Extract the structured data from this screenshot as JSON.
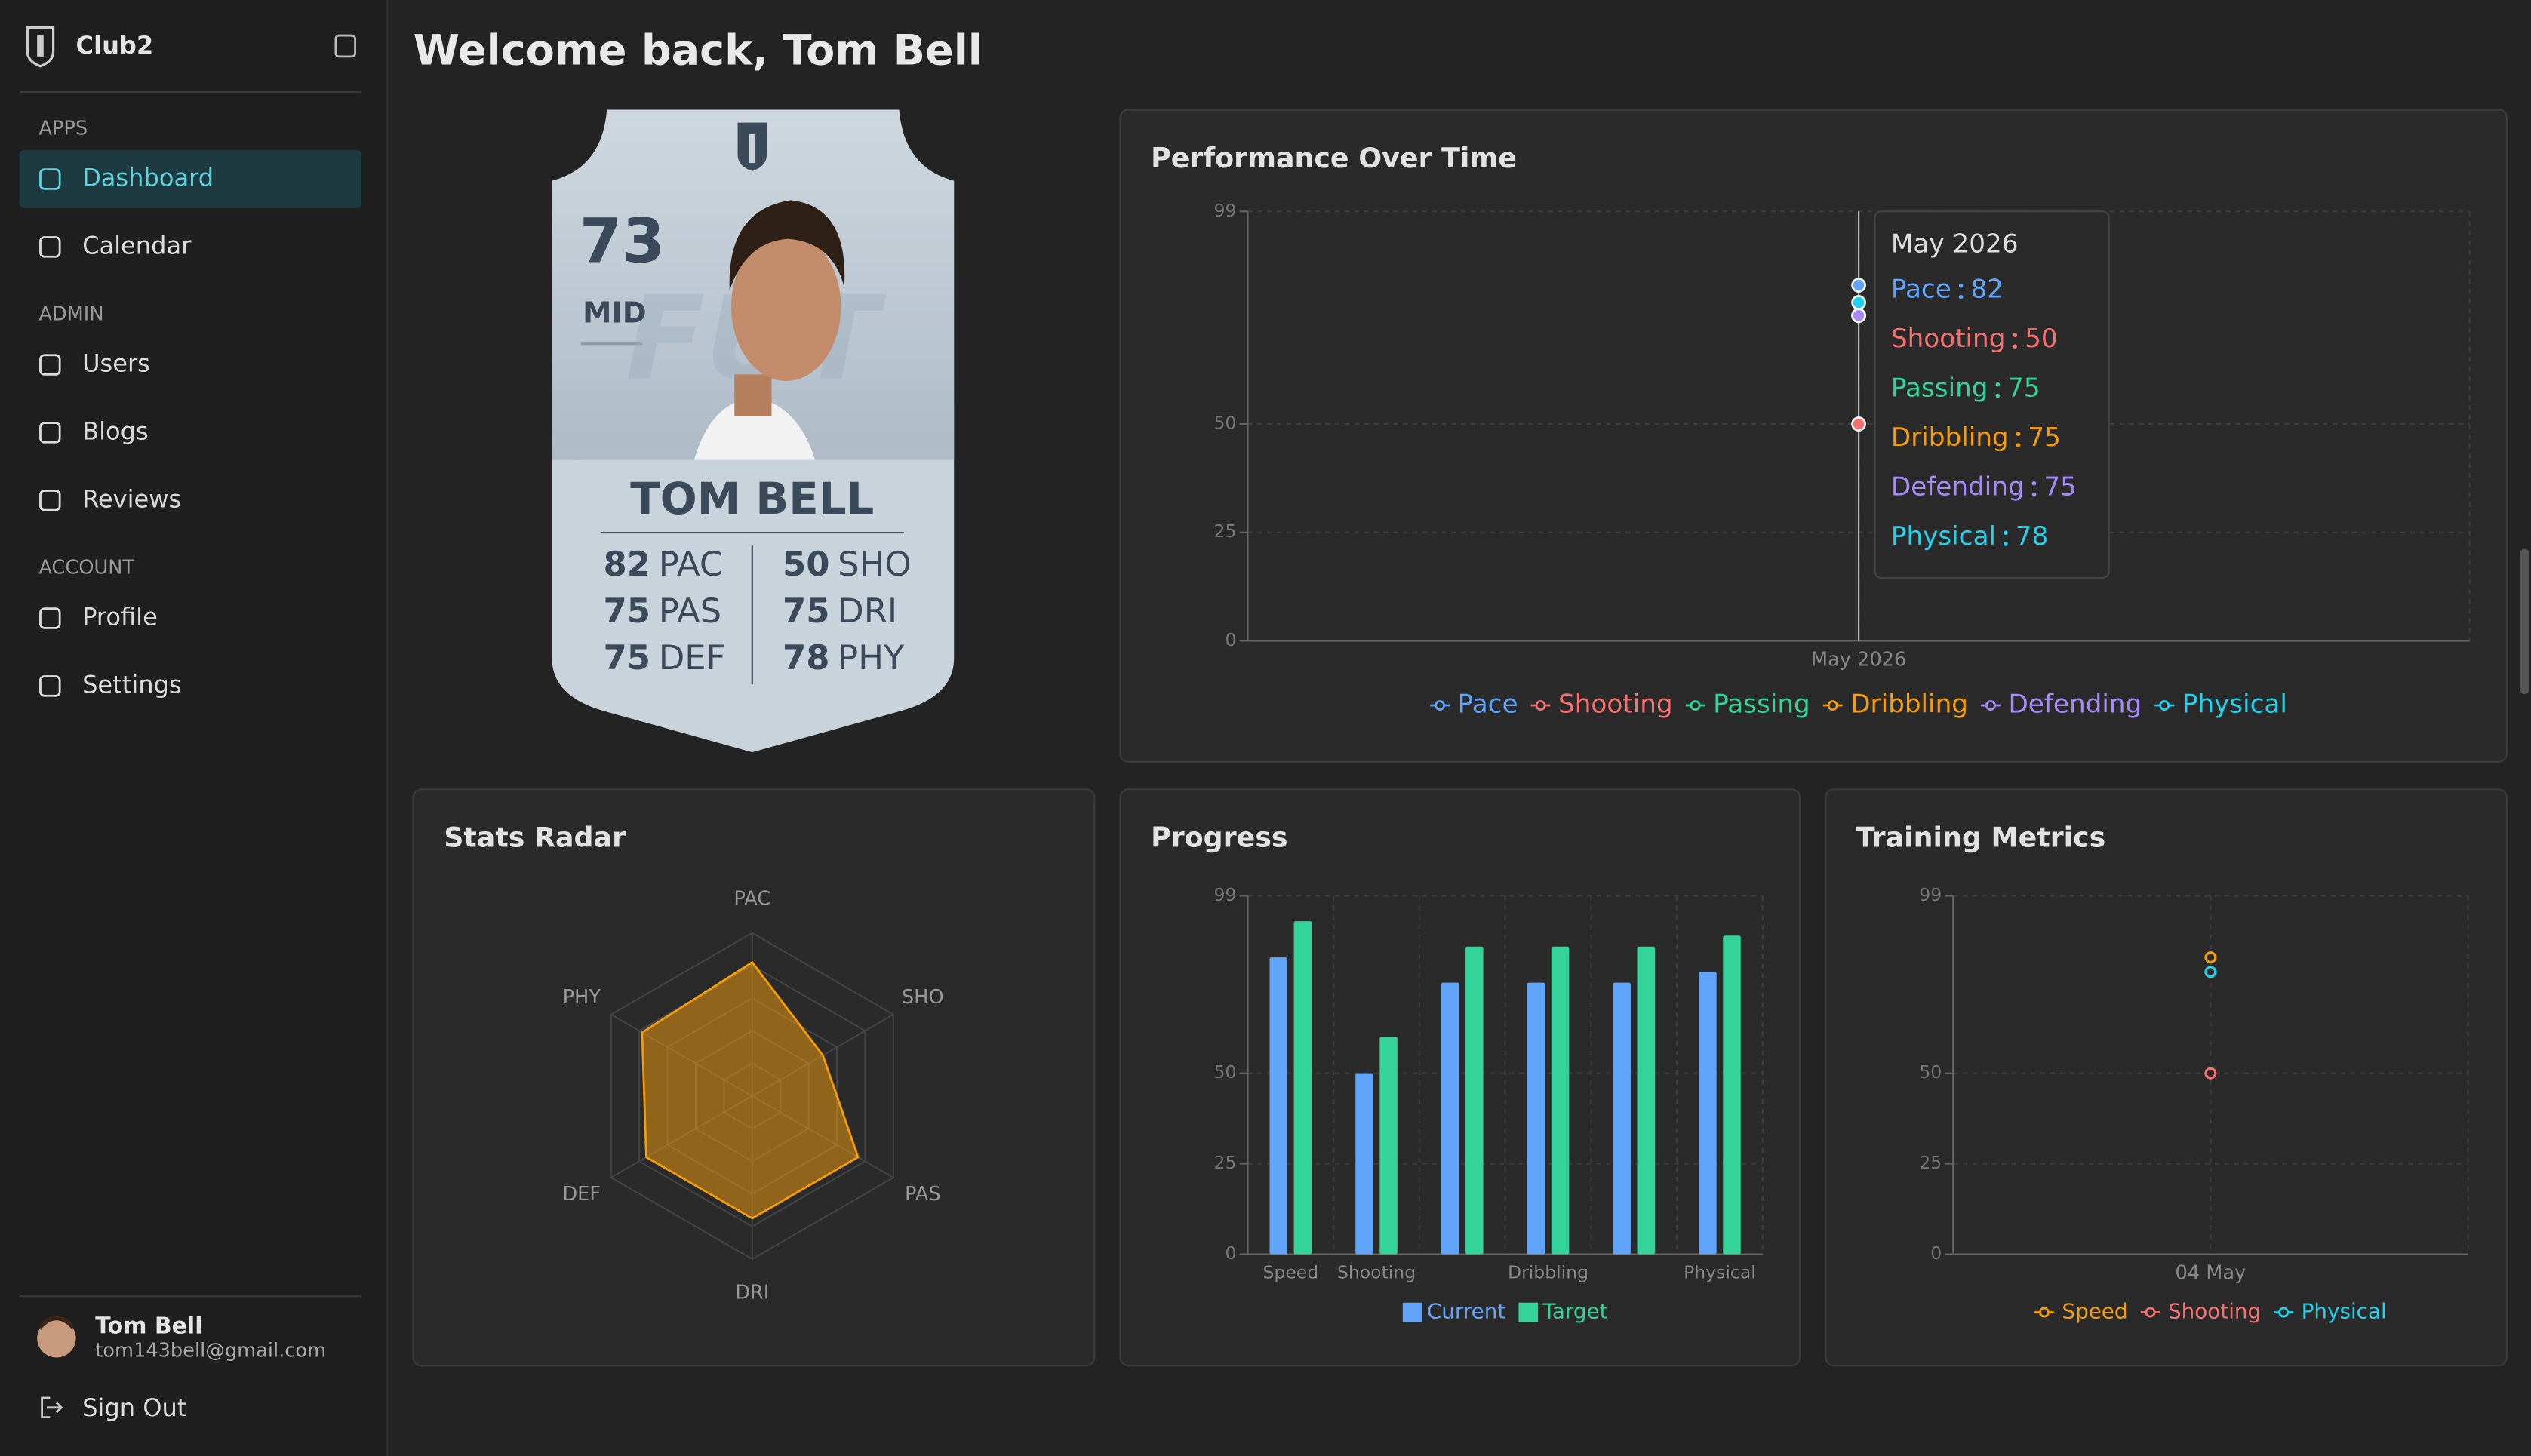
{
  "sidebar": {
    "brand": "Club2",
    "sections": [
      {
        "title": "APPS",
        "items": [
          {
            "label": "Dashboard",
            "active": true
          },
          {
            "label": "Calendar"
          }
        ]
      },
      {
        "title": "ADMIN",
        "items": [
          {
            "label": "Users"
          },
          {
            "label": "Blogs"
          },
          {
            "label": "Reviews"
          }
        ]
      },
      {
        "title": "ACCOUNT",
        "items": [
          {
            "label": "Profile"
          },
          {
            "label": "Settings"
          }
        ]
      }
    ],
    "user": {
      "name": "Tom Bell",
      "email": "tom143bell@gmail.com"
    },
    "sign_out": "Sign Out"
  },
  "header": {
    "title": "Welcome back, Tom Bell"
  },
  "player_card": {
    "rating": 73,
    "position": "MID",
    "watermark": "FUT",
    "name": "TOM BELL",
    "stats": [
      {
        "value": 82,
        "label": "PAC"
      },
      {
        "value": 50,
        "label": "SHO"
      },
      {
        "value": 75,
        "label": "PAS"
      },
      {
        "value": 75,
        "label": "DRI"
      },
      {
        "value": 75,
        "label": "DEF"
      },
      {
        "value": 78,
        "label": "PHY"
      }
    ]
  },
  "chart_data": [
    {
      "type": "line",
      "title": "Performance Over Time",
      "x": [
        "May 2026"
      ],
      "series": [
        {
          "name": "Pace",
          "color": "#60a5fa",
          "values": [
            82
          ]
        },
        {
          "name": "Shooting",
          "color": "#f87171",
          "values": [
            50
          ]
        },
        {
          "name": "Passing",
          "color": "#34d399",
          "values": [
            75
          ]
        },
        {
          "name": "Dribbling",
          "color": "#f59e0b",
          "values": [
            75
          ]
        },
        {
          "name": "Defending",
          "color": "#a78bfa",
          "values": [
            75
          ]
        },
        {
          "name": "Physical",
          "color": "#22d3ee",
          "values": [
            78
          ]
        }
      ],
      "ylim": [
        0,
        99
      ],
      "yticks": [
        0,
        25,
        50,
        99
      ],
      "grid": true,
      "legend": "bottom",
      "tooltip": true
    },
    {
      "type": "radar",
      "title": "Stats Radar",
      "categories": [
        "PAC",
        "SHO",
        "PAS",
        "DRI",
        "DEF",
        "PHY"
      ],
      "values": [
        82,
        50,
        75,
        75,
        75,
        78
      ],
      "color": "#f59e0b",
      "ylim": [
        0,
        100
      ]
    },
    {
      "type": "bar",
      "title": "Progress",
      "categories": [
        "Speed",
        "Shooting",
        null,
        "Dribbling",
        null,
        "Physical"
      ],
      "series": [
        {
          "name": "Current",
          "color": "#60a5fa",
          "values": [
            82,
            50,
            75,
            75,
            75,
            78
          ]
        },
        {
          "name": "Target",
          "color": "#34d399",
          "values": [
            92,
            60,
            85,
            85,
            85,
            88
          ]
        }
      ],
      "ylim": [
        0,
        99
      ],
      "yticks": [
        0,
        25,
        50,
        99
      ],
      "grid": true,
      "legend": "bottom"
    },
    {
      "type": "line",
      "title": "Training Metrics",
      "x": [
        "04 May"
      ],
      "series": [
        {
          "name": "Speed",
          "color": "#f59e0b",
          "values": [
            82
          ]
        },
        {
          "name": "Shooting",
          "color": "#f87171",
          "values": [
            50
          ]
        },
        {
          "name": "Physical",
          "color": "#22d3ee",
          "values": [
            78
          ]
        }
      ],
      "ylim": [
        0,
        99
      ],
      "yticks": [
        0,
        25,
        50,
        99
      ],
      "grid": true,
      "legend": "bottom"
    }
  ]
}
